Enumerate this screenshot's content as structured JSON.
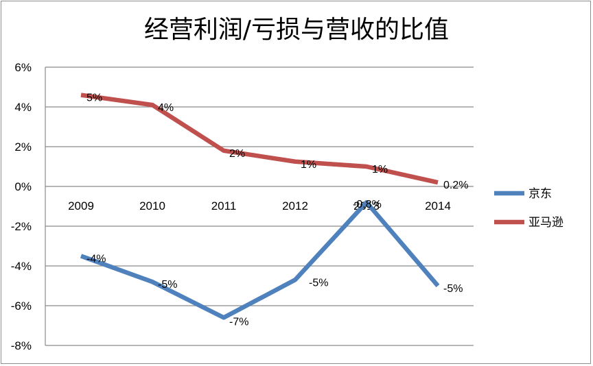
{
  "chart_data": {
    "type": "line",
    "title": "经营利润/亏损与营收的比值",
    "categories": [
      "2009",
      "2010",
      "2011",
      "2012",
      "2013",
      "2014"
    ],
    "y_ticks": [
      "6%",
      "4%",
      "2%",
      "0%",
      "-2%",
      "-4%",
      "-6%",
      "-8%"
    ],
    "ylim": [
      -8,
      6
    ],
    "grid": true,
    "legend_position": "right",
    "series": [
      {
        "name": "京东",
        "color": "#4f81bd",
        "values": [
          -3.5,
          -4.8,
          -6.6,
          -4.7,
          -0.8,
          -5.0
        ],
        "labels": [
          "-4%",
          "-5%",
          "-7%",
          "-5%",
          "-0.8%",
          "-5%"
        ]
      },
      {
        "name": "亚马逊",
        "color": "#c0504d",
        "values": [
          4.6,
          4.1,
          1.8,
          1.25,
          1.0,
          0.2
        ],
        "labels": [
          "5%",
          "4%",
          "2%",
          "1%",
          "1%",
          "0.2%"
        ]
      }
    ]
  }
}
